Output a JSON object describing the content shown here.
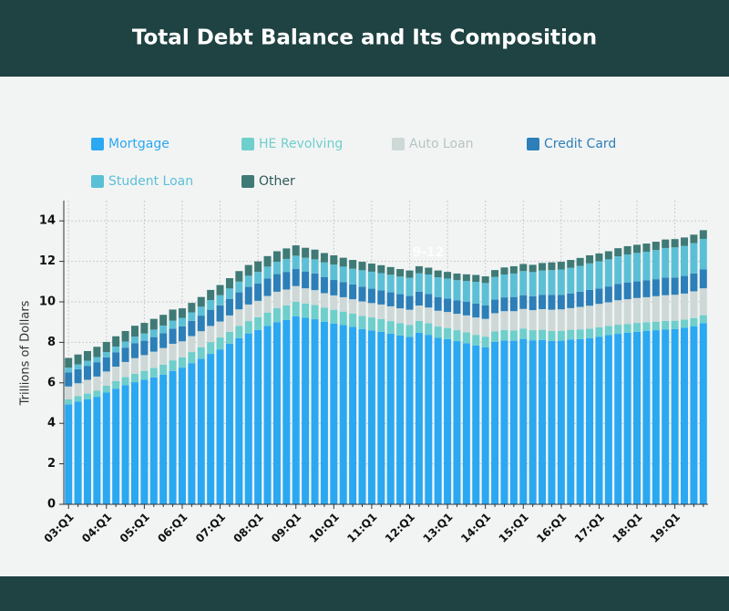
{
  "chart_data": {
    "type": "stacked-bar",
    "title": "Total Debt Balance and Its Composition",
    "y_label": "Trillions of Dollars",
    "annotation": "9-12",
    "categories": [
      "03:Q1",
      null,
      null,
      null,
      "04:Q1",
      null,
      null,
      null,
      "05:Q1",
      null,
      null,
      null,
      "06:Q1",
      null,
      null,
      null,
      "07:Q1",
      null,
      null,
      null,
      "08:Q1",
      null,
      null,
      null,
      "09:Q1",
      null,
      null,
      null,
      "10:Q1",
      null,
      null,
      null,
      "11:Q1",
      null,
      null,
      null,
      "12:Q1",
      null,
      null,
      null,
      "13:Q1",
      null,
      null,
      null,
      "14:Q1",
      null,
      null,
      null,
      "15:Q1",
      null,
      null,
      null,
      "16:Q1",
      null,
      null,
      null,
      "17:Q1",
      null,
      null,
      null,
      "18:Q1",
      null,
      null,
      null,
      "19:Q1",
      null,
      null,
      null
    ],
    "series": [
      {
        "name": "Mortgage",
        "color": "#2aa8f2",
        "values": [
          4.94,
          5.08,
          5.18,
          5.31,
          5.53,
          5.71,
          5.88,
          6.03,
          6.16,
          6.27,
          6.41,
          6.59,
          6.75,
          6.96,
          7.19,
          7.43,
          7.65,
          7.93,
          8.21,
          8.44,
          8.61,
          8.81,
          9.0,
          9.11,
          9.29,
          9.21,
          9.14,
          9.02,
          8.93,
          8.85,
          8.76,
          8.66,
          8.59,
          8.52,
          8.43,
          8.34,
          8.27,
          8.48,
          8.37,
          8.22,
          8.16,
          8.06,
          7.96,
          7.84,
          7.75,
          8.02,
          8.09,
          8.08,
          8.17,
          8.1,
          8.12,
          8.07,
          8.08,
          8.14,
          8.16,
          8.2,
          8.28,
          8.36,
          8.42,
          8.47,
          8.52,
          8.56,
          8.6,
          8.64,
          8.66,
          8.72,
          8.8,
          8.95
        ]
      },
      {
        "name": "HE Revolving",
        "color": "#6ecfcc",
        "values": [
          0.24,
          0.26,
          0.29,
          0.3,
          0.33,
          0.37,
          0.4,
          0.42,
          0.43,
          0.47,
          0.49,
          0.52,
          0.51,
          0.56,
          0.57,
          0.58,
          0.59,
          0.59,
          0.6,
          0.61,
          0.63,
          0.66,
          0.69,
          0.71,
          0.71,
          0.71,
          0.7,
          0.69,
          0.68,
          0.67,
          0.66,
          0.65,
          0.64,
          0.63,
          0.62,
          0.61,
          0.59,
          0.58,
          0.57,
          0.56,
          0.55,
          0.54,
          0.53,
          0.53,
          0.53,
          0.52,
          0.52,
          0.51,
          0.51,
          0.5,
          0.5,
          0.49,
          0.49,
          0.48,
          0.48,
          0.47,
          0.46,
          0.45,
          0.45,
          0.44,
          0.44,
          0.43,
          0.42,
          0.42,
          0.41,
          0.4,
          0.4,
          0.39
        ]
      },
      {
        "name": "Auto Loan",
        "color": "#cdd8d7",
        "values": [
          0.64,
          0.64,
          0.68,
          0.7,
          0.7,
          0.72,
          0.75,
          0.77,
          0.78,
          0.8,
          0.82,
          0.82,
          0.79,
          0.79,
          0.79,
          0.8,
          0.79,
          0.81,
          0.82,
          0.82,
          0.81,
          0.82,
          0.81,
          0.79,
          0.78,
          0.75,
          0.74,
          0.72,
          0.71,
          0.71,
          0.71,
          0.71,
          0.71,
          0.72,
          0.73,
          0.73,
          0.75,
          0.76,
          0.78,
          0.78,
          0.79,
          0.81,
          0.84,
          0.86,
          0.88,
          0.9,
          0.93,
          0.95,
          0.97,
          0.99,
          1.02,
          1.05,
          1.06,
          1.07,
          1.11,
          1.14,
          1.16,
          1.17,
          1.21,
          1.22,
          1.23,
          1.24,
          1.26,
          1.27,
          1.28,
          1.29,
          1.32,
          1.33
        ]
      },
      {
        "name": "Credit Card",
        "color": "#2c7fb8",
        "values": [
          0.69,
          0.69,
          0.69,
          0.71,
          0.7,
          0.7,
          0.71,
          0.73,
          0.71,
          0.72,
          0.73,
          0.75,
          0.74,
          0.75,
          0.77,
          0.8,
          0.8,
          0.82,
          0.84,
          0.87,
          0.85,
          0.86,
          0.87,
          0.87,
          0.84,
          0.83,
          0.82,
          0.8,
          0.76,
          0.75,
          0.73,
          0.73,
          0.71,
          0.7,
          0.69,
          0.7,
          0.68,
          0.68,
          0.67,
          0.68,
          0.66,
          0.67,
          0.67,
          0.68,
          0.66,
          0.67,
          0.68,
          0.7,
          0.68,
          0.69,
          0.71,
          0.73,
          0.71,
          0.73,
          0.75,
          0.78,
          0.76,
          0.78,
          0.81,
          0.83,
          0.82,
          0.83,
          0.84,
          0.87,
          0.85,
          0.87,
          0.88,
          0.93
        ]
      },
      {
        "name": "Student Loan",
        "color": "#5bc0d6",
        "values": [
          0.24,
          0.24,
          0.25,
          0.25,
          0.26,
          0.29,
          0.3,
          0.33,
          0.36,
          0.37,
          0.38,
          0.39,
          0.42,
          0.42,
          0.44,
          0.48,
          0.5,
          0.51,
          0.53,
          0.55,
          0.58,
          0.59,
          0.61,
          0.64,
          0.66,
          0.68,
          0.7,
          0.72,
          0.76,
          0.76,
          0.78,
          0.81,
          0.84,
          0.85,
          0.87,
          0.87,
          0.9,
          0.91,
          0.96,
          0.97,
          0.99,
          0.99,
          1.03,
          1.08,
          1.11,
          1.12,
          1.13,
          1.16,
          1.19,
          1.19,
          1.2,
          1.23,
          1.26,
          1.26,
          1.28,
          1.31,
          1.34,
          1.34,
          1.36,
          1.38,
          1.41,
          1.41,
          1.44,
          1.46,
          1.49,
          1.48,
          1.5,
          1.51
        ]
      },
      {
        "name": "Other",
        "color": "#3f7a76",
        "values": [
          0.48,
          0.49,
          0.48,
          0.51,
          0.5,
          0.51,
          0.52,
          0.54,
          0.52,
          0.53,
          0.53,
          0.55,
          0.47,
          0.47,
          0.48,
          0.5,
          0.5,
          0.51,
          0.52,
          0.53,
          0.52,
          0.52,
          0.52,
          0.52,
          0.51,
          0.49,
          0.48,
          0.46,
          0.46,
          0.44,
          0.43,
          0.42,
          0.4,
          0.39,
          0.38,
          0.37,
          0.36,
          0.35,
          0.34,
          0.34,
          0.33,
          0.33,
          0.33,
          0.34,
          0.33,
          0.34,
          0.35,
          0.36,
          0.35,
          0.36,
          0.37,
          0.38,
          0.38,
          0.39,
          0.39,
          0.4,
          0.39,
          0.4,
          0.4,
          0.41,
          0.4,
          0.41,
          0.41,
          0.42,
          0.41,
          0.42,
          0.42,
          0.43
        ]
      }
    ],
    "ylim": [
      0,
      15
    ],
    "yticks": [
      0,
      2,
      4,
      6,
      8,
      10,
      12,
      14
    ],
    "grid": true
  }
}
